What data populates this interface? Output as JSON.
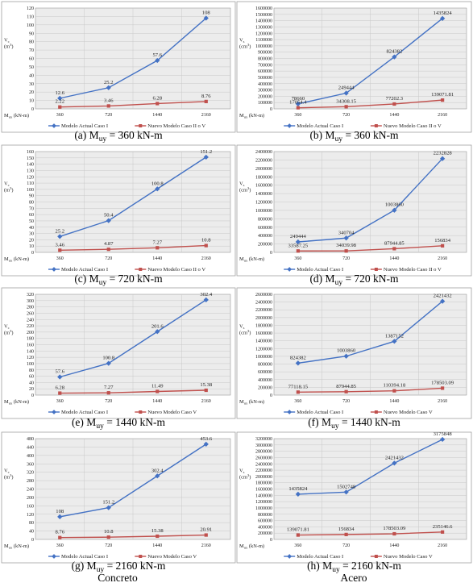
{
  "colors": {
    "series1": "#4472c4",
    "series2": "#c0504d",
    "grid": "#c8c8c8",
    "bg": "#ececec"
  },
  "columns": [
    "Concreto",
    "Acero"
  ],
  "chart_data": [
    {
      "type": "line",
      "caption": "(a) M",
      "caption_sub": "uy",
      "caption_rest": " = 360 kN-m",
      "ylabel_main": "V",
      "ylabel_sub": "c",
      "yunit": "(m",
      "yunit_sup": "3",
      "yunit_end": ")",
      "xlabel_main": "M",
      "xlabel_sub": "ux",
      "xlabel_rest": " (kN-m)",
      "categories": [
        "360",
        "720",
        "1440",
        "2160"
      ],
      "ylim": [
        0,
        120
      ],
      "ystep": 10,
      "series": [
        {
          "name": "Modelo Actual Caso I",
          "values": [
            12.6,
            25.2,
            57.6,
            108
          ],
          "labels": [
            "12.6",
            "25.2",
            "57.6",
            "108"
          ]
        },
        {
          "name": "Nuevo Modelo Caso II o V",
          "values": [
            2.22,
            3.46,
            6.28,
            8.76
          ],
          "labels": [
            "2.22",
            "3.46",
            "6.28",
            "8.76"
          ]
        }
      ]
    },
    {
      "type": "line",
      "caption": "(b) M",
      "caption_sub": "uy",
      "caption_rest": " = 360 kN-m",
      "ylabel_main": "V",
      "ylabel_sub": "s",
      "yunit": "(cm",
      "yunit_sup": "3",
      "yunit_end": ")",
      "xlabel_main": "M",
      "xlabel_sub": "ux",
      "xlabel_rest": " (kN-m)",
      "categories": [
        "360",
        "720",
        "1440",
        "2160"
      ],
      "ylim": [
        0,
        1600000
      ],
      "ystep": 100000,
      "series": [
        {
          "name": "Modelo Actual Caso I",
          "values": [
            78660,
            249444,
            824382,
            1435824
          ],
          "labels": [
            "78660",
            "249444",
            "824382",
            "1435824"
          ]
        },
        {
          "name": "Nuevo Modelo Caso II o V",
          "values": [
            17054.4,
            34308.15,
            77202.3,
            139071.81
          ],
          "labels": [
            "17054.4",
            "34308.15",
            "77202.3",
            "139071.81"
          ]
        }
      ]
    },
    {
      "type": "line",
      "caption": "(c) M",
      "caption_sub": "uy",
      "caption_rest": " = 720 kN-m",
      "ylabel_main": "V",
      "ylabel_sub": "c",
      "yunit": "(m",
      "yunit_sup": "3",
      "yunit_end": ")",
      "xlabel_main": "M",
      "xlabel_sub": "ux",
      "xlabel_rest": " (kN-m)",
      "categories": [
        "360",
        "720",
        "1440",
        "2160"
      ],
      "ylim": [
        0,
        160
      ],
      "ystep": 10,
      "series": [
        {
          "name": "Modelo Actual Caso I",
          "values": [
            25.2,
            50.4,
            100.8,
            151.2
          ],
          "labels": [
            "25.2",
            "50.4",
            "100.8",
            "151.2"
          ]
        },
        {
          "name": "Nuevo Modelo Caso II o V",
          "values": [
            3.46,
            4.87,
            7.27,
            10.8
          ],
          "labels": [
            "3.46",
            "4.87",
            "7.27",
            "10.8"
          ]
        }
      ]
    },
    {
      "type": "line",
      "caption": "(d) M",
      "caption_sub": "uy",
      "caption_rest": " = 720 kN-m",
      "ylabel_main": "V",
      "ylabel_sub": "s",
      "yunit": "(cm",
      "yunit_sup": "3",
      "yunit_end": ")",
      "xlabel_main": "M",
      "xlabel_sub": "ux",
      "xlabel_rest": " (kN-m)",
      "categories": [
        "360",
        "720",
        "1440",
        "2160"
      ],
      "ylim": [
        0,
        2400000
      ],
      "ystep": 200000,
      "series": [
        {
          "name": "Modelo Actual Caso I",
          "values": [
            249444,
            340704,
            1003860,
            2232828
          ],
          "labels": [
            "249444",
            "340704",
            "1003860",
            "2232828"
          ]
        },
        {
          "name": "Nuevo Modelo Caso II o V",
          "values": [
            33587.25,
            34039.98,
            87944.85,
            156834
          ],
          "labels": [
            "33587.25",
            "34039.98",
            "87944.85",
            "156834"
          ]
        }
      ]
    },
    {
      "type": "line",
      "caption": "(e) M",
      "caption_sub": "uy",
      "caption_rest": " = 1440 kN-m",
      "ylabel_main": "V",
      "ylabel_sub": "c",
      "yunit": "(m",
      "yunit_sup": "3",
      "yunit_end": ")",
      "xlabel_main": "M",
      "xlabel_sub": "ux",
      "xlabel_rest": " (kN-m)",
      "categories": [
        "360",
        "720",
        "1440",
        "2160"
      ],
      "ylim": [
        0,
        320
      ],
      "ystep": 20,
      "series": [
        {
          "name": "Modelo Actual Caso I",
          "values": [
            57.6,
            100.8,
            201.6,
            302.4
          ],
          "labels": [
            "57.6",
            "100.8",
            "201.6",
            "302.4"
          ]
        },
        {
          "name": "Nuevo Modelo Caso V",
          "values": [
            6.28,
            7.27,
            11.49,
            15.38
          ],
          "labels": [
            "6.28",
            "7.27",
            "11.49",
            "15.38"
          ]
        }
      ]
    },
    {
      "type": "line",
      "caption": "(f) M",
      "caption_sub": "uy",
      "caption_rest": " = 1440 kN-m",
      "ylabel_main": "V",
      "ylabel_sub": "s",
      "yunit": "(cm",
      "yunit_sup": "3",
      "yunit_end": ")",
      "xlabel_main": "M",
      "xlabel_sub": "ux",
      "xlabel_rest": " (kN-m)",
      "categories": [
        "360",
        "720",
        "1440",
        "2160"
      ],
      "ylim": [
        0,
        2600000
      ],
      "ystep": 200000,
      "series": [
        {
          "name": "Modelo Actual Caso I",
          "values": [
            824382,
            1003860,
            1387152,
            2421432
          ],
          "labels": [
            "824382",
            "1003860",
            "1387152",
            "2421432"
          ]
        },
        {
          "name": "Nuevo Modelo Caso V",
          "values": [
            77118.15,
            87944.85,
            110394.18,
            178503.09
          ],
          "labels": [
            "77118.15",
            "87944.85",
            "110394.18",
            "178503.09"
          ]
        }
      ]
    },
    {
      "type": "line",
      "caption": "(g) M",
      "caption_sub": "uy",
      "caption_rest": " = 2160 kN-m",
      "ylabel_main": "V",
      "ylabel_sub": "c",
      "yunit": "(m",
      "yunit_sup": "3",
      "yunit_end": ")",
      "xlabel_main": "M",
      "xlabel_sub": "ux",
      "xlabel_rest": " (kN-m)",
      "categories": [
        "360",
        "720",
        "1440",
        "2160"
      ],
      "ylim": [
        0,
        480
      ],
      "ystep": 40,
      "series": [
        {
          "name": "Modelo Actual Caso I",
          "values": [
            108,
            151.2,
            302.4,
            453.6
          ],
          "labels": [
            "108",
            "151.2",
            "302.4",
            "453.6"
          ]
        },
        {
          "name": "Nuevo Modelo Caso V",
          "values": [
            8.76,
            10.8,
            15.38,
            20.91
          ],
          "labels": [
            "8.76",
            "10.8",
            "15.38",
            "20.91"
          ]
        }
      ]
    },
    {
      "type": "line",
      "caption": "(h) M",
      "caption_sub": "uy",
      "caption_rest": " = 2160 kN-m",
      "ylabel_main": "V",
      "ylabel_sub": "s",
      "yunit": "(cm",
      "yunit_sup": "3",
      "yunit_end": ")",
      "xlabel_main": "M",
      "xlabel_sub": "ux",
      "xlabel_rest": " (kN-m)",
      "categories": [
        "360",
        "720",
        "1440",
        "2160"
      ],
      "ylim": [
        0,
        3200000
      ],
      "ystep": 200000,
      "series": [
        {
          "name": "Modelo Actual Caso I",
          "values": [
            1435824,
            1502748,
            2421432,
            3175848
          ],
          "labels": [
            "1435824",
            "1502748",
            "2421432",
            "3175848"
          ]
        },
        {
          "name": "Nuevo Modelo Caso V",
          "values": [
            139071.81,
            156834,
            178503.09,
            235146.6
          ],
          "labels": [
            "139071.81",
            "156834",
            "178503.09",
            "235146.6"
          ]
        }
      ]
    }
  ]
}
